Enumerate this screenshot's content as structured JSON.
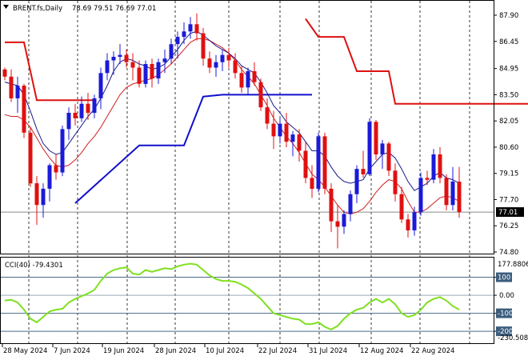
{
  "header": {
    "symbol": "BRENT.fs,Daily",
    "ohlc": "78.69 79.51 76.69 77.01"
  },
  "price_axis": {
    "ticks": [
      "87.90",
      "86.45",
      "84.95",
      "83.50",
      "82.05",
      "80.60",
      "79.15",
      "77.70",
      "76.25",
      "74.80"
    ],
    "current_price": "77.01"
  },
  "cci_panel": {
    "label": "CCI(40) -79.4301",
    "axis_top": "177.8806",
    "axis_bottom": "-230.508",
    "levels": [
      "100",
      "0.00",
      "-100",
      "-200"
    ]
  },
  "time_axis": [
    "28 May 2024",
    "7 Jun 2024",
    "19 Jun 2024",
    "28 Jun 2024",
    "10 Jul 2024",
    "22 Jul 2024",
    "31 Jul 2024",
    "12 Aug 2024",
    "22 Aug 2024"
  ],
  "colors": {
    "bull": "#1a1ad8",
    "bear": "#e01010",
    "fast_ma": "#1a1a8c",
    "slow_ma": "#d02020",
    "stop_red": "#dd1111",
    "stop_blue": "#1010cc",
    "cci": "#7fe020",
    "grid": "#3a3a3a"
  },
  "chart_data": [
    {
      "type": "candlestick",
      "symbol": "BRENT.fs",
      "timeframe": "Daily",
      "ylim": [
        74.8,
        87.9
      ],
      "candles": [
        {
          "o": 84.9,
          "h": 85.0,
          "l": 84.3,
          "c": 84.5
        },
        {
          "o": 84.5,
          "h": 84.9,
          "l": 83.1,
          "c": 83.3
        },
        {
          "o": 83.3,
          "h": 84.5,
          "l": 82.5,
          "c": 84.0
        },
        {
          "o": 84.0,
          "h": 84.1,
          "l": 81.1,
          "c": 81.4
        },
        {
          "o": 81.4,
          "h": 81.7,
          "l": 78.4,
          "c": 78.6
        },
        {
          "o": 78.6,
          "h": 79.0,
          "l": 76.3,
          "c": 77.4
        },
        {
          "o": 77.4,
          "h": 78.6,
          "l": 76.7,
          "c": 78.3
        },
        {
          "o": 78.3,
          "h": 79.7,
          "l": 77.6,
          "c": 79.6
        },
        {
          "o": 79.6,
          "h": 80.2,
          "l": 78.8,
          "c": 79.2
        },
        {
          "o": 79.2,
          "h": 81.8,
          "l": 79.0,
          "c": 81.6
        },
        {
          "o": 81.6,
          "h": 82.8,
          "l": 81.0,
          "c": 82.5
        },
        {
          "o": 82.5,
          "h": 83.0,
          "l": 81.8,
          "c": 82.2
        },
        {
          "o": 82.2,
          "h": 83.4,
          "l": 82.0,
          "c": 83.0
        },
        {
          "o": 83.0,
          "h": 83.6,
          "l": 82.1,
          "c": 82.5
        },
        {
          "o": 82.5,
          "h": 83.5,
          "l": 82.2,
          "c": 83.3
        },
        {
          "o": 83.3,
          "h": 85.0,
          "l": 82.7,
          "c": 84.7
        },
        {
          "o": 84.7,
          "h": 85.8,
          "l": 84.3,
          "c": 85.4
        },
        {
          "o": 85.4,
          "h": 85.9,
          "l": 84.6,
          "c": 85.6
        },
        {
          "o": 85.6,
          "h": 86.3,
          "l": 85.2,
          "c": 85.7
        },
        {
          "o": 85.7,
          "h": 86.0,
          "l": 85.0,
          "c": 85.3
        },
        {
          "o": 85.3,
          "h": 85.8,
          "l": 84.3,
          "c": 85.0
        },
        {
          "o": 85.0,
          "h": 85.4,
          "l": 83.9,
          "c": 84.1
        },
        {
          "o": 84.1,
          "h": 85.4,
          "l": 83.9,
          "c": 85.2
        },
        {
          "o": 85.2,
          "h": 85.5,
          "l": 83.9,
          "c": 84.4
        },
        {
          "o": 84.4,
          "h": 85.5,
          "l": 84.1,
          "c": 85.3
        },
        {
          "o": 85.3,
          "h": 86.0,
          "l": 84.7,
          "c": 85.5
        },
        {
          "o": 85.5,
          "h": 86.6,
          "l": 85.2,
          "c": 86.3
        },
        {
          "o": 86.3,
          "h": 87.0,
          "l": 85.5,
          "c": 86.7
        },
        {
          "o": 86.7,
          "h": 87.5,
          "l": 86.3,
          "c": 87.0
        },
        {
          "o": 87.0,
          "h": 87.8,
          "l": 86.6,
          "c": 87.4
        },
        {
          "o": 87.4,
          "h": 88.0,
          "l": 86.5,
          "c": 86.9
        },
        {
          "o": 86.9,
          "h": 87.2,
          "l": 85.1,
          "c": 85.5
        },
        {
          "o": 85.5,
          "h": 85.9,
          "l": 84.7,
          "c": 85.0
        },
        {
          "o": 85.0,
          "h": 85.7,
          "l": 84.5,
          "c": 85.3
        },
        {
          "o": 85.3,
          "h": 86.0,
          "l": 84.8,
          "c": 85.7
        },
        {
          "o": 85.7,
          "h": 86.1,
          "l": 85.0,
          "c": 85.4
        },
        {
          "o": 85.4,
          "h": 85.8,
          "l": 84.4,
          "c": 84.7
        },
        {
          "o": 84.7,
          "h": 85.1,
          "l": 83.6,
          "c": 83.9
        },
        {
          "o": 83.9,
          "h": 85.0,
          "l": 83.5,
          "c": 84.8
        },
        {
          "o": 84.8,
          "h": 85.3,
          "l": 84.0,
          "c": 84.2
        },
        {
          "o": 84.2,
          "h": 84.4,
          "l": 82.6,
          "c": 82.8
        },
        {
          "o": 82.8,
          "h": 83.3,
          "l": 81.6,
          "c": 81.9
        },
        {
          "o": 81.9,
          "h": 82.6,
          "l": 80.5,
          "c": 81.2
        },
        {
          "o": 81.2,
          "h": 82.2,
          "l": 80.8,
          "c": 81.9
        },
        {
          "o": 81.9,
          "h": 82.5,
          "l": 80.6,
          "c": 80.9
        },
        {
          "o": 80.9,
          "h": 81.5,
          "l": 80.1,
          "c": 81.3
        },
        {
          "o": 81.3,
          "h": 81.6,
          "l": 79.8,
          "c": 80.4
        },
        {
          "o": 80.4,
          "h": 80.9,
          "l": 78.6,
          "c": 78.9
        },
        {
          "o": 78.9,
          "h": 79.6,
          "l": 77.8,
          "c": 78.3
        },
        {
          "o": 78.3,
          "h": 81.4,
          "l": 78.1,
          "c": 81.2
        },
        {
          "o": 81.2,
          "h": 81.4,
          "l": 78.0,
          "c": 78.3
        },
        {
          "o": 78.3,
          "h": 78.6,
          "l": 75.9,
          "c": 76.5
        },
        {
          "o": 76.5,
          "h": 77.4,
          "l": 75.0,
          "c": 76.2
        },
        {
          "o": 76.2,
          "h": 77.1,
          "l": 75.8,
          "c": 76.9
        },
        {
          "o": 76.9,
          "h": 78.2,
          "l": 76.5,
          "c": 78.0
        },
        {
          "o": 78.0,
          "h": 79.6,
          "l": 77.5,
          "c": 79.4
        },
        {
          "o": 79.4,
          "h": 80.4,
          "l": 78.9,
          "c": 79.1
        },
        {
          "o": 79.1,
          "h": 82.2,
          "l": 79.0,
          "c": 82.0
        },
        {
          "o": 82.0,
          "h": 82.1,
          "l": 79.9,
          "c": 80.2
        },
        {
          "o": 80.2,
          "h": 81.0,
          "l": 79.4,
          "c": 80.8
        },
        {
          "o": 80.8,
          "h": 80.9,
          "l": 79.0,
          "c": 79.3
        },
        {
          "o": 79.3,
          "h": 79.7,
          "l": 77.6,
          "c": 78.0
        },
        {
          "o": 78.0,
          "h": 78.4,
          "l": 76.4,
          "c": 76.6
        },
        {
          "o": 76.6,
          "h": 76.9,
          "l": 75.6,
          "c": 76.0
        },
        {
          "o": 76.0,
          "h": 77.3,
          "l": 75.7,
          "c": 77.0
        },
        {
          "o": 77.0,
          "h": 79.2,
          "l": 76.8,
          "c": 78.9
        },
        {
          "o": 78.9,
          "h": 79.3,
          "l": 78.5,
          "c": 78.8
        },
        {
          "o": 78.8,
          "h": 80.5,
          "l": 78.6,
          "c": 80.2
        },
        {
          "o": 80.2,
          "h": 80.6,
          "l": 78.6,
          "c": 78.9
        },
        {
          "o": 78.9,
          "h": 79.1,
          "l": 77.1,
          "c": 77.4
        },
        {
          "o": 77.4,
          "h": 79.5,
          "l": 77.1,
          "c": 78.7
        },
        {
          "o": 78.69,
          "h": 79.51,
          "l": 76.69,
          "c": 77.01
        }
      ],
      "fast_ma": [
        84.2,
        84.1,
        84.0,
        83.5,
        82.6,
        81.6,
        80.8,
        80.4,
        80.2,
        80.3,
        80.8,
        81.3,
        81.8,
        82.3,
        82.7,
        83.3,
        84.0,
        84.8,
        85.3,
        85.5,
        85.4,
        85.2,
        85.1,
        84.9,
        85.0,
        85.2,
        85.6,
        86.0,
        86.5,
        86.9,
        87.0,
        86.8,
        86.5,
        86.2,
        86.0,
        85.8,
        85.5,
        85.1,
        84.9,
        84.7,
        84.2,
        83.6,
        82.9,
        82.5,
        82.0,
        81.7,
        81.4,
        80.9,
        80.4,
        80.4,
        80.1,
        79.5,
        79.0,
        78.7,
        78.6,
        78.7,
        78.8,
        79.4,
        79.8,
        80.2,
        80.3,
        80.0,
        79.4,
        78.7,
        78.2,
        78.4,
        78.6,
        79.0,
        79.2,
        78.9,
        78.8,
        78.6
      ],
      "slow_ma": [
        82.4,
        82.3,
        82.3,
        82.1,
        81.7,
        81.1,
        80.5,
        80.0,
        79.6,
        79.5,
        79.6,
        79.9,
        80.3,
        80.8,
        81.2,
        81.7,
        82.3,
        82.9,
        83.5,
        83.9,
        84.1,
        84.2,
        84.3,
        84.4,
        84.6,
        84.9,
        85.2,
        85.6,
        86.0,
        86.4,
        86.6,
        86.6,
        86.5,
        86.3,
        86.1,
        85.8,
        85.4,
        84.9,
        84.5,
        84.1,
        83.5,
        82.9,
        82.2,
        81.7,
        81.2,
        80.8,
        80.3,
        79.7,
        79.1,
        78.8,
        78.4,
        77.9,
        77.4,
        77.0,
        76.9,
        77.0,
        77.2,
        77.6,
        78.1,
        78.5,
        78.8,
        78.7,
        78.3,
        77.6,
        77.0,
        77.0,
        77.2,
        77.5,
        77.8,
        77.9,
        77.8,
        77.6
      ],
      "stop_red": [
        [
          [
            0,
            86.4
          ],
          [
            3,
            86.4
          ],
          [
            5,
            83.2
          ],
          [
            14,
            83.2
          ]
        ],
        [
          [
            47,
            87.7
          ],
          [
            49,
            86.7
          ],
          [
            53,
            86.7
          ],
          [
            55,
            84.8
          ],
          [
            60,
            84.8
          ],
          [
            61,
            83.0
          ],
          [
            82,
            83.0
          ]
        ]
      ],
      "stop_blue": [
        [
          11,
          77.5
        ],
        [
          21,
          80.7
        ],
        [
          28,
          80.7
        ],
        [
          31,
          83.4
        ],
        [
          34,
          83.5
        ],
        [
          48,
          83.5
        ]
      ]
    },
    {
      "type": "line",
      "title": "CCI(40)",
      "last_value": -79.4301,
      "ylim": [
        -230.508,
        177.8806
      ],
      "levels": [
        100,
        0,
        -100,
        -200
      ],
      "values": [
        -30,
        -25,
        -40,
        -80,
        -130,
        -150,
        -120,
        -90,
        -80,
        -75,
        -40,
        -20,
        -5,
        10,
        30,
        80,
        120,
        140,
        150,
        155,
        120,
        115,
        140,
        130,
        140,
        150,
        145,
        160,
        170,
        175,
        170,
        140,
        110,
        90,
        80,
        80,
        75,
        60,
        40,
        10,
        -20,
        -60,
        -100,
        -110,
        -120,
        -130,
        -135,
        -160,
        -160,
        -150,
        -175,
        -190,
        -170,
        -130,
        -100,
        -80,
        -70,
        -40,
        -20,
        -40,
        -20,
        -50,
        -100,
        -120,
        -110,
        -80,
        -40,
        -20,
        -10,
        -30,
        -60,
        -79.43
      ]
    }
  ]
}
